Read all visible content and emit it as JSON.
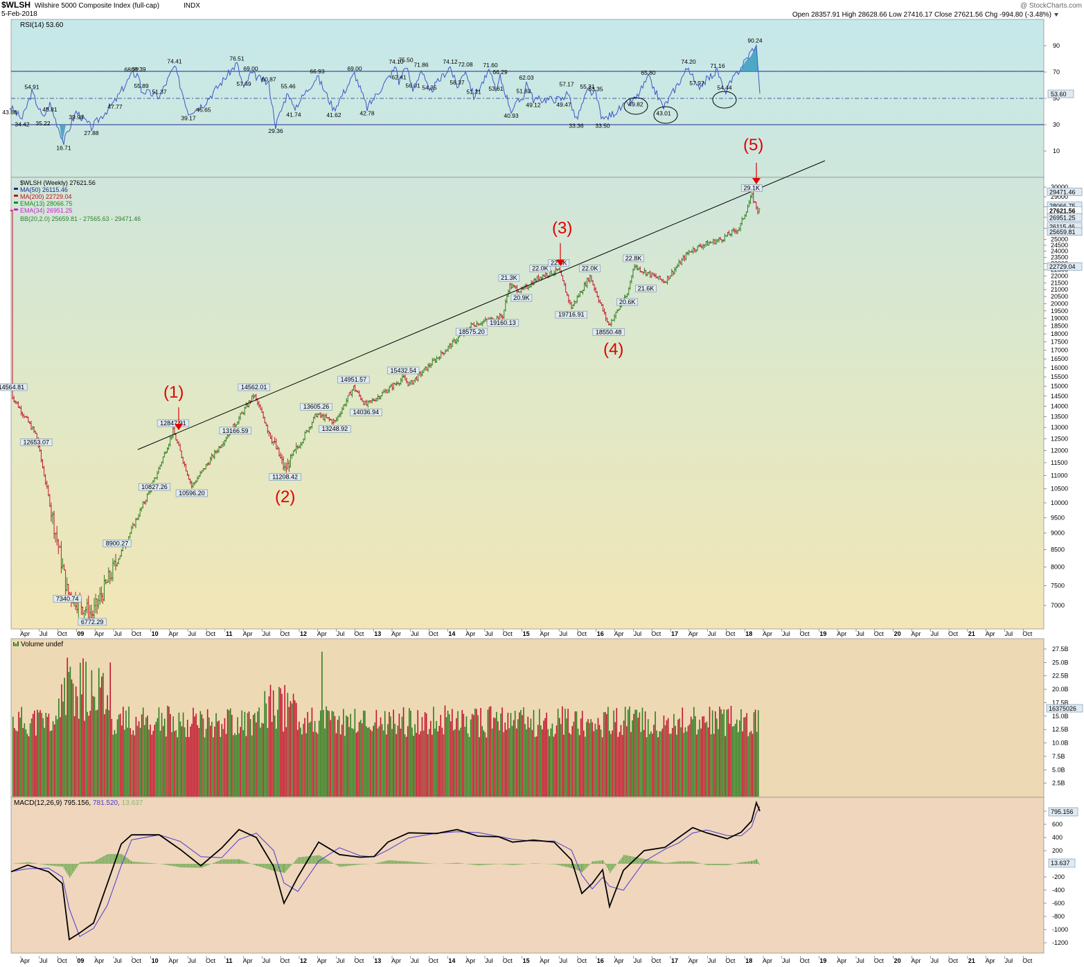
{
  "header": {
    "symbol": "$WLSH",
    "name": "Wilshire 5000 Composite Index (full-cap)",
    "exchange": "INDX",
    "date": "5-Feb-2018",
    "source": "@ StockCharts.com",
    "ohlc": "Open 28357.91  High 28628.66  Low 27416.17  Close 27621.56  Chg -994.80 (-3.48%)"
  },
  "colors": {
    "up": "#2e7d1e",
    "down": "#c0142c",
    "rsi_line": "#3b56c8",
    "ma50": "#1a2b8c",
    "ma200": "#c01010",
    "ema13": "#1c8a1c",
    "ema34": "#d020d0",
    "bb": "#2f7f2f",
    "wave_label": "#e00000"
  },
  "rsi_panel": {
    "legend": "RSI(14) 53.60",
    "current": "53.60",
    "axis_labels": [
      "90",
      "70",
      "50",
      "30",
      "10"
    ],
    "annotations": [
      "43.68",
      "54.91",
      "45.81",
      "34.42",
      "35.22",
      "39.98",
      "16.71",
      "27.88",
      "47.77",
      "68.22",
      "68.39",
      "74.41",
      "55.89",
      "51.37",
      "39.17",
      "45.65",
      "76.51",
      "69.00",
      "57.49",
      "60.87",
      "55.46",
      "29.36",
      "41.74",
      "66.93",
      "41.62",
      "69.00",
      "42.78",
      "74.10",
      "75.50",
      "71.86",
      "62.41",
      "56.01",
      "54.35",
      "74.12",
      "72.08",
      "58.37",
      "51.31",
      "71.60",
      "66.29",
      "53.61",
      "62.03",
      "51.83",
      "40.93",
      "49.12",
      "57.17",
      "49.47",
      "55.31",
      "53.35",
      "33.36",
      "33.50",
      "65.80",
      "49.82",
      "43.01",
      "74.20",
      "57.97",
      "71.16",
      "54.44",
      "90.24"
    ]
  },
  "price_panel": {
    "legend": {
      "title": "$WLSH (Weekly) 27621.56",
      "ma50": "MA(50) 26115.46",
      "ma200": "MA(200) 22729.04",
      "ema13": "EMA(13) 28066.75",
      "ema34": "EMA(34) 26951.25",
      "bb": "BB(20,2.0) 25659.81 - 27565.63 - 29471.46"
    },
    "axis_labels": [
      "30000",
      "29000",
      "28000",
      "27000",
      "26000",
      "25000",
      "24500",
      "24000",
      "23500",
      "23000",
      "22500",
      "22000",
      "21500",
      "21000",
      "20500",
      "20000",
      "19500",
      "19000",
      "18500",
      "18000",
      "17500",
      "17000",
      "16500",
      "16000",
      "15500",
      "15000",
      "14500",
      "14000",
      "13500",
      "13000",
      "12500",
      "12000",
      "11500",
      "11000",
      "10500",
      "10000",
      "9500",
      "9000",
      "8500",
      "8000",
      "7500",
      "7000"
    ],
    "right_boxes": [
      "29471.46",
      "28066.75",
      "27621.56",
      "26951.25",
      "26115.46",
      "25659.81",
      "22729.04"
    ],
    "waves": [
      "(1)",
      "(2)",
      "(3)",
      "(4)",
      "(5)"
    ]
  },
  "x_axis_labels": [
    "Apr",
    "Jul",
    "Oct",
    "09",
    "Apr",
    "Jul",
    "Oct",
    "10",
    "Apr",
    "Jul",
    "Oct",
    "11",
    "Apr",
    "Jul",
    "Oct",
    "12",
    "Apr",
    "Jul",
    "Oct",
    "13",
    "Apr",
    "Jul",
    "Oct",
    "14",
    "Apr",
    "Jul",
    "Oct",
    "15",
    "Apr",
    "Jul",
    "Oct",
    "16",
    "Apr",
    "Jul",
    "Oct",
    "17",
    "Apr",
    "Jul",
    "Oct",
    "18",
    "Apr",
    "Jul",
    "Oct",
    "19",
    "Apr",
    "Jul",
    "Oct",
    "20",
    "Apr",
    "Jul",
    "Oct",
    "21",
    "Apr",
    "Jul",
    "Oct"
  ],
  "volume_panel": {
    "legend": "Volume undef",
    "current": "16375026",
    "axis_labels": [
      "27.5B",
      "25.0B",
      "22.5B",
      "20.0B",
      "17.5B",
      "15.0B",
      "12.5B",
      "10.0B",
      "7.5B",
      "5.0B",
      "2.5B"
    ]
  },
  "macd_panel": {
    "legend": "MACD(12,26,9) 795.156,",
    "signal": "781.520,",
    "hist": "13.637",
    "current": "795.156",
    "hist_box": "13.637",
    "axis_labels": [
      "800",
      "600",
      "400",
      "200",
      "-200",
      "-400",
      "-600",
      "-800",
      "-1000",
      "-1200"
    ]
  },
  "chart_data": {
    "type": "line",
    "title": "$WLSH Wilshire 5000 Composite Index (full-cap)",
    "x": [
      "2008-02",
      "2008-06",
      "2008-11",
      "2009-03",
      "2010-01",
      "2010-04",
      "2010-07",
      "2011-02",
      "2011-05",
      "2011-10",
      "2012-03",
      "2012-06",
      "2012-09",
      "2012-11",
      "2013-05",
      "2013-06",
      "2014-04",
      "2014-09",
      "2014-10",
      "2014-12",
      "2015-03",
      "2015-06",
      "2015-08",
      "2015-11",
      "2016-02",
      "2016-05",
      "2016-06",
      "2016-08",
      "2016-11",
      "2017-03",
      "2017-05",
      "2017-08",
      "2017-11",
      "2018-01",
      "2018-02"
    ],
    "series": [
      {
        "name": "$WLSH (Weekly)",
        "values": [
          14564.81,
          12653.07,
          7340.74,
          6772.29,
          10827.26,
          12847.91,
          10596.2,
          13166.59,
          14562.01,
          11208.42,
          13605.26,
          13248.92,
          14951.57,
          14036.94,
          15432.54,
          15100,
          18575.2,
          19160.13,
          21300,
          20900,
          22000,
          22450,
          19716.91,
          22000,
          18550.48,
          20600,
          22800,
          22300,
          21600,
          24000,
          24500,
          25000,
          26000,
          29100,
          27621.56
        ]
      }
    ],
    "price_annotations": [
      "14564.81",
      "12653.07",
      "7340.74",
      "6772.29",
      "8900.27",
      "10827.26",
      "12847.91",
      "10596.20",
      "13166.59",
      "14562.01",
      "11208.42",
      "13605.26",
      "13248.92",
      "14951.57",
      "14036.94",
      "15432.54",
      "18575.20",
      "19160.13",
      "21.3K",
      "20.9K",
      "22.0K",
      "22.5K",
      "19716.91",
      "22.0K",
      "18550.48",
      "20.6K",
      "22.8K",
      "21.6K",
      "29.1K"
    ],
    "ylim": [
      6500,
      30000
    ],
    "y_scale": "log",
    "grid": false,
    "legend": "top-left"
  }
}
